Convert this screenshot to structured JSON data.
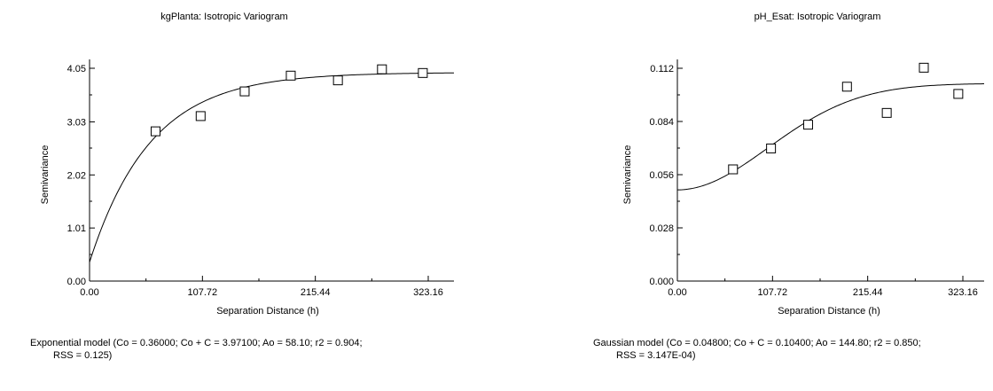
{
  "chart_data": [
    {
      "type": "scatter",
      "title": "kgPlanta: Isotropic Variogram",
      "xlabel": "Separation Distance (h)",
      "ylabel": "Semivariance",
      "xlim": [
        0,
        323.16
      ],
      "ylim": [
        0,
        4.05
      ],
      "x_ticks": [
        "0.00",
        "107.72",
        "215.44",
        "323.16"
      ],
      "y_ticks": [
        "0.00",
        "1.01",
        "2.02",
        "3.03",
        "4.05"
      ],
      "points": [
        {
          "x": 63,
          "y": 2.85
        },
        {
          "x": 106,
          "y": 3.14
        },
        {
          "x": 148,
          "y": 3.61
        },
        {
          "x": 192,
          "y": 3.91
        },
        {
          "x": 237,
          "y": 3.82
        },
        {
          "x": 279,
          "y": 4.03
        },
        {
          "x": 318,
          "y": 3.96
        }
      ],
      "model": {
        "kind": "exponential",
        "nugget": 0.36,
        "sill": 3.971,
        "range": 58.1
      },
      "caption_line1": "Exponential model (Co = 0.36000; Co + C = 3.97100; Ao = 58.10; r2 = 0.904;",
      "caption_line2": "RSS = 0.125)"
    },
    {
      "type": "scatter",
      "title": "pH_Esat: Isotropic Variogram",
      "xlabel": "Separation Distance (h)",
      "ylabel": "Semivariance",
      "xlim": [
        0,
        323.16
      ],
      "ylim": [
        0,
        0.112
      ],
      "x_ticks": [
        "0.00",
        "107.72",
        "215.44",
        "323.16"
      ],
      "y_ticks": [
        "0.000",
        "0.028",
        "0.056",
        "0.084",
        "0.112"
      ],
      "points": [
        {
          "x": 63,
          "y": 0.0588
        },
        {
          "x": 106,
          "y": 0.0698
        },
        {
          "x": 148,
          "y": 0.0823
        },
        {
          "x": 192,
          "y": 0.1023
        },
        {
          "x": 237,
          "y": 0.0885
        },
        {
          "x": 279,
          "y": 0.1123
        },
        {
          "x": 318,
          "y": 0.0985
        }
      ],
      "model": {
        "kind": "gaussian",
        "nugget": 0.048,
        "sill": 0.104,
        "range": 144.8
      },
      "caption_line1": "Gaussian model (Co = 0.04800; Co + C = 0.10400; Ao = 144.80; r2 = 0.850;",
      "caption_line2": "RSS = 3.147E-04)"
    }
  ]
}
